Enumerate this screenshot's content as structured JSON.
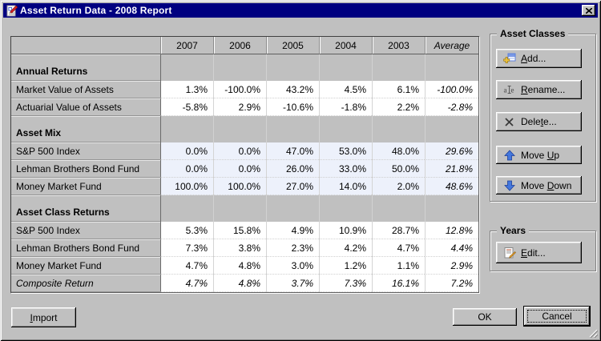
{
  "window": {
    "title": "Asset Return Data - 2008 Report",
    "icon": "report-pencil-icon",
    "close_icon": "close-icon"
  },
  "table": {
    "corner": "",
    "columns": [
      "2007",
      "2006",
      "2005",
      "2004",
      "2003",
      "Average"
    ],
    "sections": [
      {
        "title": "Annual Returns",
        "tint": "#ffffff",
        "rows": [
          {
            "label": "Market Value of Assets",
            "values": [
              "1.3%",
              "-100.0%",
              "43.2%",
              "4.5%",
              "6.1%",
              "-100.0%"
            ]
          },
          {
            "label": "Actuarial Value of Assets",
            "values": [
              "-5.8%",
              "2.9%",
              "-10.6%",
              "-1.8%",
              "2.2%",
              "-2.8%"
            ]
          }
        ]
      },
      {
        "title": "Asset Mix",
        "tint": "#edf1fb",
        "rows": [
          {
            "label": "S&P 500 Index",
            "values": [
              "0.0%",
              "0.0%",
              "47.0%",
              "53.0%",
              "48.0%",
              "29.6%"
            ]
          },
          {
            "label": "Lehman Brothers Bond Fund",
            "values": [
              "0.0%",
              "0.0%",
              "26.0%",
              "33.0%",
              "50.0%",
              "21.8%"
            ]
          },
          {
            "label": "Money Market Fund",
            "values": [
              "100.0%",
              "100.0%",
              "27.0%",
              "14.0%",
              "2.0%",
              "48.6%"
            ]
          }
        ]
      },
      {
        "title": "Asset Class Returns",
        "tint": "#ffffff",
        "rows": [
          {
            "label": "S&P 500 Index",
            "values": [
              "5.3%",
              "15.8%",
              "4.9%",
              "10.9%",
              "28.7%",
              "12.8%"
            ]
          },
          {
            "label": "Lehman Brothers Bond Fund",
            "values": [
              "7.3%",
              "3.8%",
              "2.3%",
              "4.2%",
              "4.7%",
              "4.4%"
            ]
          },
          {
            "label": "Money Market Fund",
            "values": [
              "4.7%",
              "4.8%",
              "3.0%",
              "1.2%",
              "1.1%",
              "2.9%"
            ]
          },
          {
            "label": "Composite Return",
            "values": [
              "4.7%",
              "4.8%",
              "3.7%",
              "7.3%",
              "16.1%",
              "7.2%"
            ],
            "italic": true
          }
        ]
      }
    ]
  },
  "asset_classes": {
    "title": "Asset Classes",
    "buttons": {
      "add": {
        "label": "Add...",
        "mnemonic": 0,
        "icon": "add-icon"
      },
      "rename": {
        "label": "Rename...",
        "mnemonic": 0,
        "icon": "rename-icon"
      },
      "delete": {
        "label": "Delete...",
        "mnemonic": 4,
        "icon": "delete-icon"
      },
      "move_up": {
        "label": "Move Up",
        "mnemonic": 5,
        "icon": "arrow-up-icon"
      },
      "move_down": {
        "label": "Move Down",
        "mnemonic": 5,
        "icon": "arrow-down-icon"
      }
    }
  },
  "years": {
    "title": "Years",
    "buttons": {
      "edit": {
        "label": "Edit...",
        "mnemonic": 0,
        "icon": "edit-pencil-icon"
      }
    }
  },
  "footer": {
    "import": {
      "label": "Import",
      "mnemonic": 0
    },
    "ok": {
      "label": "OK"
    },
    "cancel": {
      "label": "Cancel"
    }
  },
  "colors": {
    "titlebar": "#000080",
    "dialog": "#c0c0c0",
    "asset_mix_tint": "#edf1fb",
    "arrow_blue": "#4477dd"
  }
}
